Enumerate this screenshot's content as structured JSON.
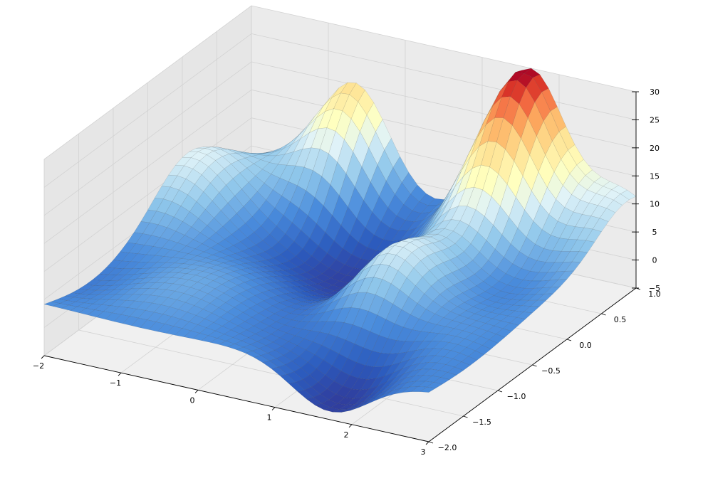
{
  "chart_data": {
    "type": "surface",
    "title": "",
    "xlabel": "",
    "ylabel": "",
    "zlabel": "",
    "colormap": "RdYlBu_r (blue low, yellow mid, red high)",
    "grid": true,
    "xlim": [
      -2,
      3
    ],
    "ylim": [
      -2,
      1
    ],
    "zlim": [
      -5,
      30
    ],
    "x_ticks": [
      "−2",
      "−1",
      "0",
      "1",
      "2",
      "3"
    ],
    "y_ticks": [
      "−2.0",
      "−1.5",
      "−1.0",
      "−0.5",
      "0.0",
      "0.5",
      "1.0"
    ],
    "z_ticks": [
      "−5",
      "0",
      "5",
      "10",
      "15",
      "20",
      "25",
      "30"
    ],
    "peaks": [
      {
        "x": 1.6,
        "y": 0.9,
        "z": 30
      },
      {
        "x": -0.6,
        "y": 0.95,
        "z": 23
      },
      {
        "x": 1.3,
        "y": -0.6,
        "z": 14
      },
      {
        "x": 2.9,
        "y": 0.9,
        "z": 12
      },
      {
        "x": -1.8,
        "y": 0.1,
        "z": 11
      }
    ],
    "troughs": [
      {
        "x": 1.7,
        "y": -1.7,
        "z": -5
      },
      {
        "x": 0.5,
        "y": -0.2,
        "z": -4
      },
      {
        "x": -0.3,
        "y": 0.5,
        "z": -4
      }
    ]
  }
}
